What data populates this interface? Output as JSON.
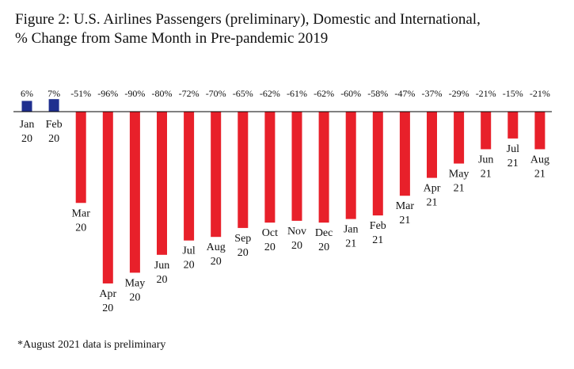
{
  "title_line1": "Figure 2: U.S. Airlines Passengers (preliminary), Domestic and International,",
  "title_line2": "% Change from Same Month in Pre-pandemic 2019",
  "footnote": "*August 2021 data is preliminary",
  "colors": {
    "positive": "#1f2f8f",
    "negative": "#e8202a",
    "axis": "#000000"
  },
  "chart_data": {
    "type": "bar",
    "title": "U.S. Airlines Passengers (preliminary), Domestic and International, % Change from Same Month in Pre-pandemic 2019",
    "xlabel": "",
    "ylabel": "",
    "unit": "%",
    "ylim": [
      -96,
      7
    ],
    "categories": [
      [
        "Jan",
        "20"
      ],
      [
        "Feb",
        "20"
      ],
      [
        "Mar",
        "20"
      ],
      [
        "Apr",
        "20"
      ],
      [
        "May",
        "20"
      ],
      [
        "Jun",
        "20"
      ],
      [
        "Jul",
        "20"
      ],
      [
        "Aug",
        "20"
      ],
      [
        "Sep",
        "20"
      ],
      [
        "Oct",
        "20"
      ],
      [
        "Nov",
        "20"
      ],
      [
        "Dec",
        "20"
      ],
      [
        "Jan",
        "21"
      ],
      [
        "Feb",
        "21"
      ],
      [
        "Mar",
        "21"
      ],
      [
        "Apr",
        "21"
      ],
      [
        "May",
        "21"
      ],
      [
        "Jun",
        "21"
      ],
      [
        "Jul",
        "21"
      ],
      [
        "Aug",
        "21"
      ]
    ],
    "values": [
      6,
      7,
      -51,
      -96,
      -90,
      -80,
      -72,
      -70,
      -65,
      -62,
      -61,
      -62,
      -60,
      -58,
      -47,
      -37,
      -29,
      -21,
      -15,
      -21
    ]
  }
}
